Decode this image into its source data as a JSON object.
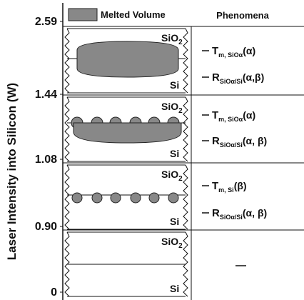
{
  "legend": {
    "label": "Melted Volume"
  },
  "header": "Phenomena",
  "axis": {
    "label": "Laser Intensity into Silicon (W)",
    "ticks": [
      "2.59",
      "1.44",
      "1.08",
      "0.90",
      "0"
    ]
  },
  "panels": [
    {
      "oxide": {
        "base": "SiO",
        "sub": "2"
      },
      "substrate": "Si",
      "phenomena": [
        {
          "symbol": "T",
          "sub": "m, SiOα",
          "arg": "(α)"
        },
        {
          "symbol": "R",
          "sub": "SiOα/Si",
          "arg": "(α,β)"
        }
      ]
    },
    {
      "oxide": {
        "base": "SiO",
        "sub": "2"
      },
      "substrate": "Si",
      "phenomena": [
        {
          "symbol": "T",
          "sub": "m, SiOα",
          "arg": "(α)"
        },
        {
          "symbol": "R",
          "sub": "SiOα/Si",
          "arg": "(α, β)"
        }
      ]
    },
    {
      "oxide": {
        "base": "SiO",
        "sub": "2"
      },
      "substrate": "Si",
      "phenomena": [
        {
          "symbol": "T",
          "sub": "m, Si",
          "arg": "(β)"
        },
        {
          "symbol": "R",
          "sub": "SiOα/Si",
          "arg": "(α, β)"
        }
      ]
    },
    {
      "oxide": {
        "base": "SiO",
        "sub": "2"
      },
      "substrate": "Si",
      "phenomena": []
    }
  ]
}
